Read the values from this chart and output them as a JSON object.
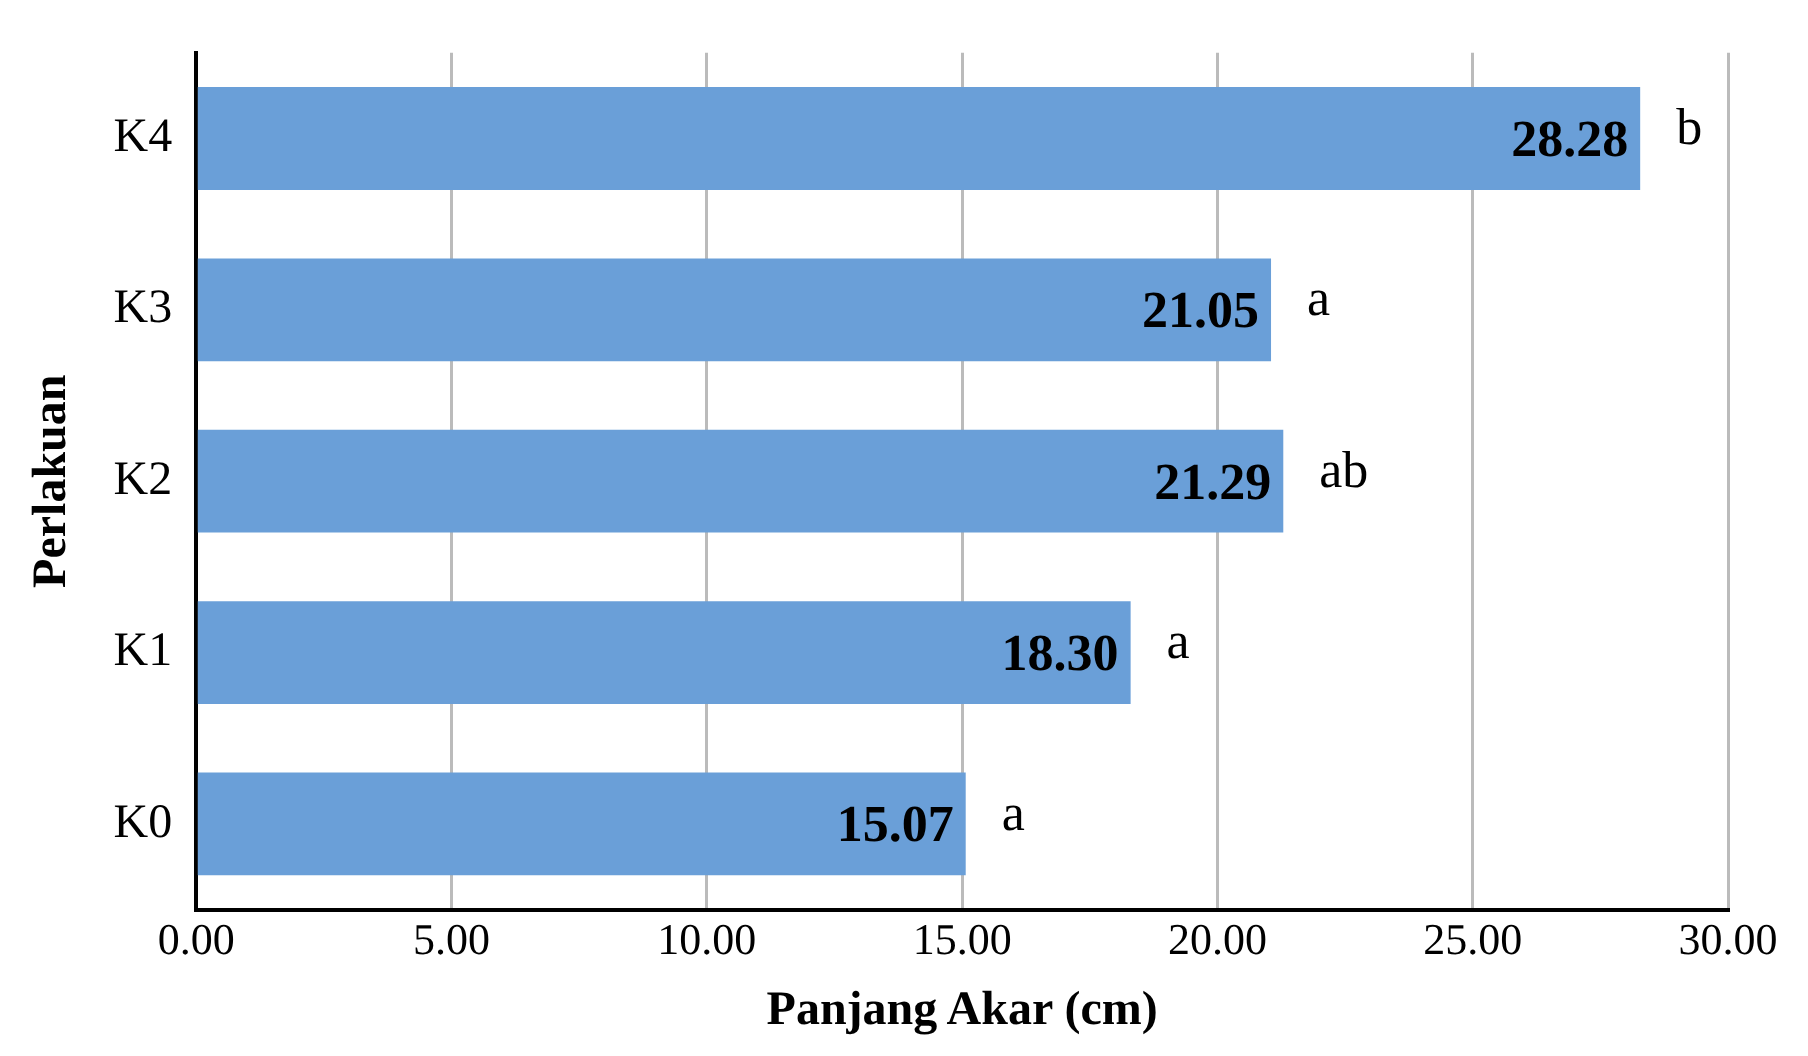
{
  "chart_data": {
    "type": "bar",
    "orientation": "horizontal",
    "xlabel": "Panjang Akar (cm)",
    "ylabel": "Perlakuan",
    "categories": [
      "K4",
      "K3",
      "K2",
      "K1",
      "K0"
    ],
    "values": [
      28.28,
      21.05,
      21.29,
      18.3,
      15.07
    ],
    "value_labels": [
      "28.28",
      "21.05",
      "21.29",
      "18.30",
      "15.07"
    ],
    "color": "#6a9fd8",
    "xlim": [
      0,
      30
    ],
    "xticks": [
      {
        "value": 0,
        "label": "0.00"
      },
      {
        "value": 5,
        "label": "5.00"
      },
      {
        "value": 10,
        "label": "10.00"
      },
      {
        "value": 15,
        "label": "15.00"
      },
      {
        "value": 20,
        "label": "20.00"
      },
      {
        "value": 25,
        "label": "25.00"
      },
      {
        "value": 30,
        "label": "30.00"
      }
    ],
    "grid": "x",
    "legend": false,
    "annotations": [
      {
        "text": "b",
        "x": 28.28,
        "y": "K4"
      },
      {
        "text": "a",
        "x": 21.05,
        "y": "K3"
      },
      {
        "text": "ab",
        "x": 21.29,
        "y": "K2"
      },
      {
        "text": "a",
        "x": 18.3,
        "y": "K1"
      },
      {
        "text": "a",
        "x": 15.07,
        "y": "K0"
      }
    ]
  }
}
